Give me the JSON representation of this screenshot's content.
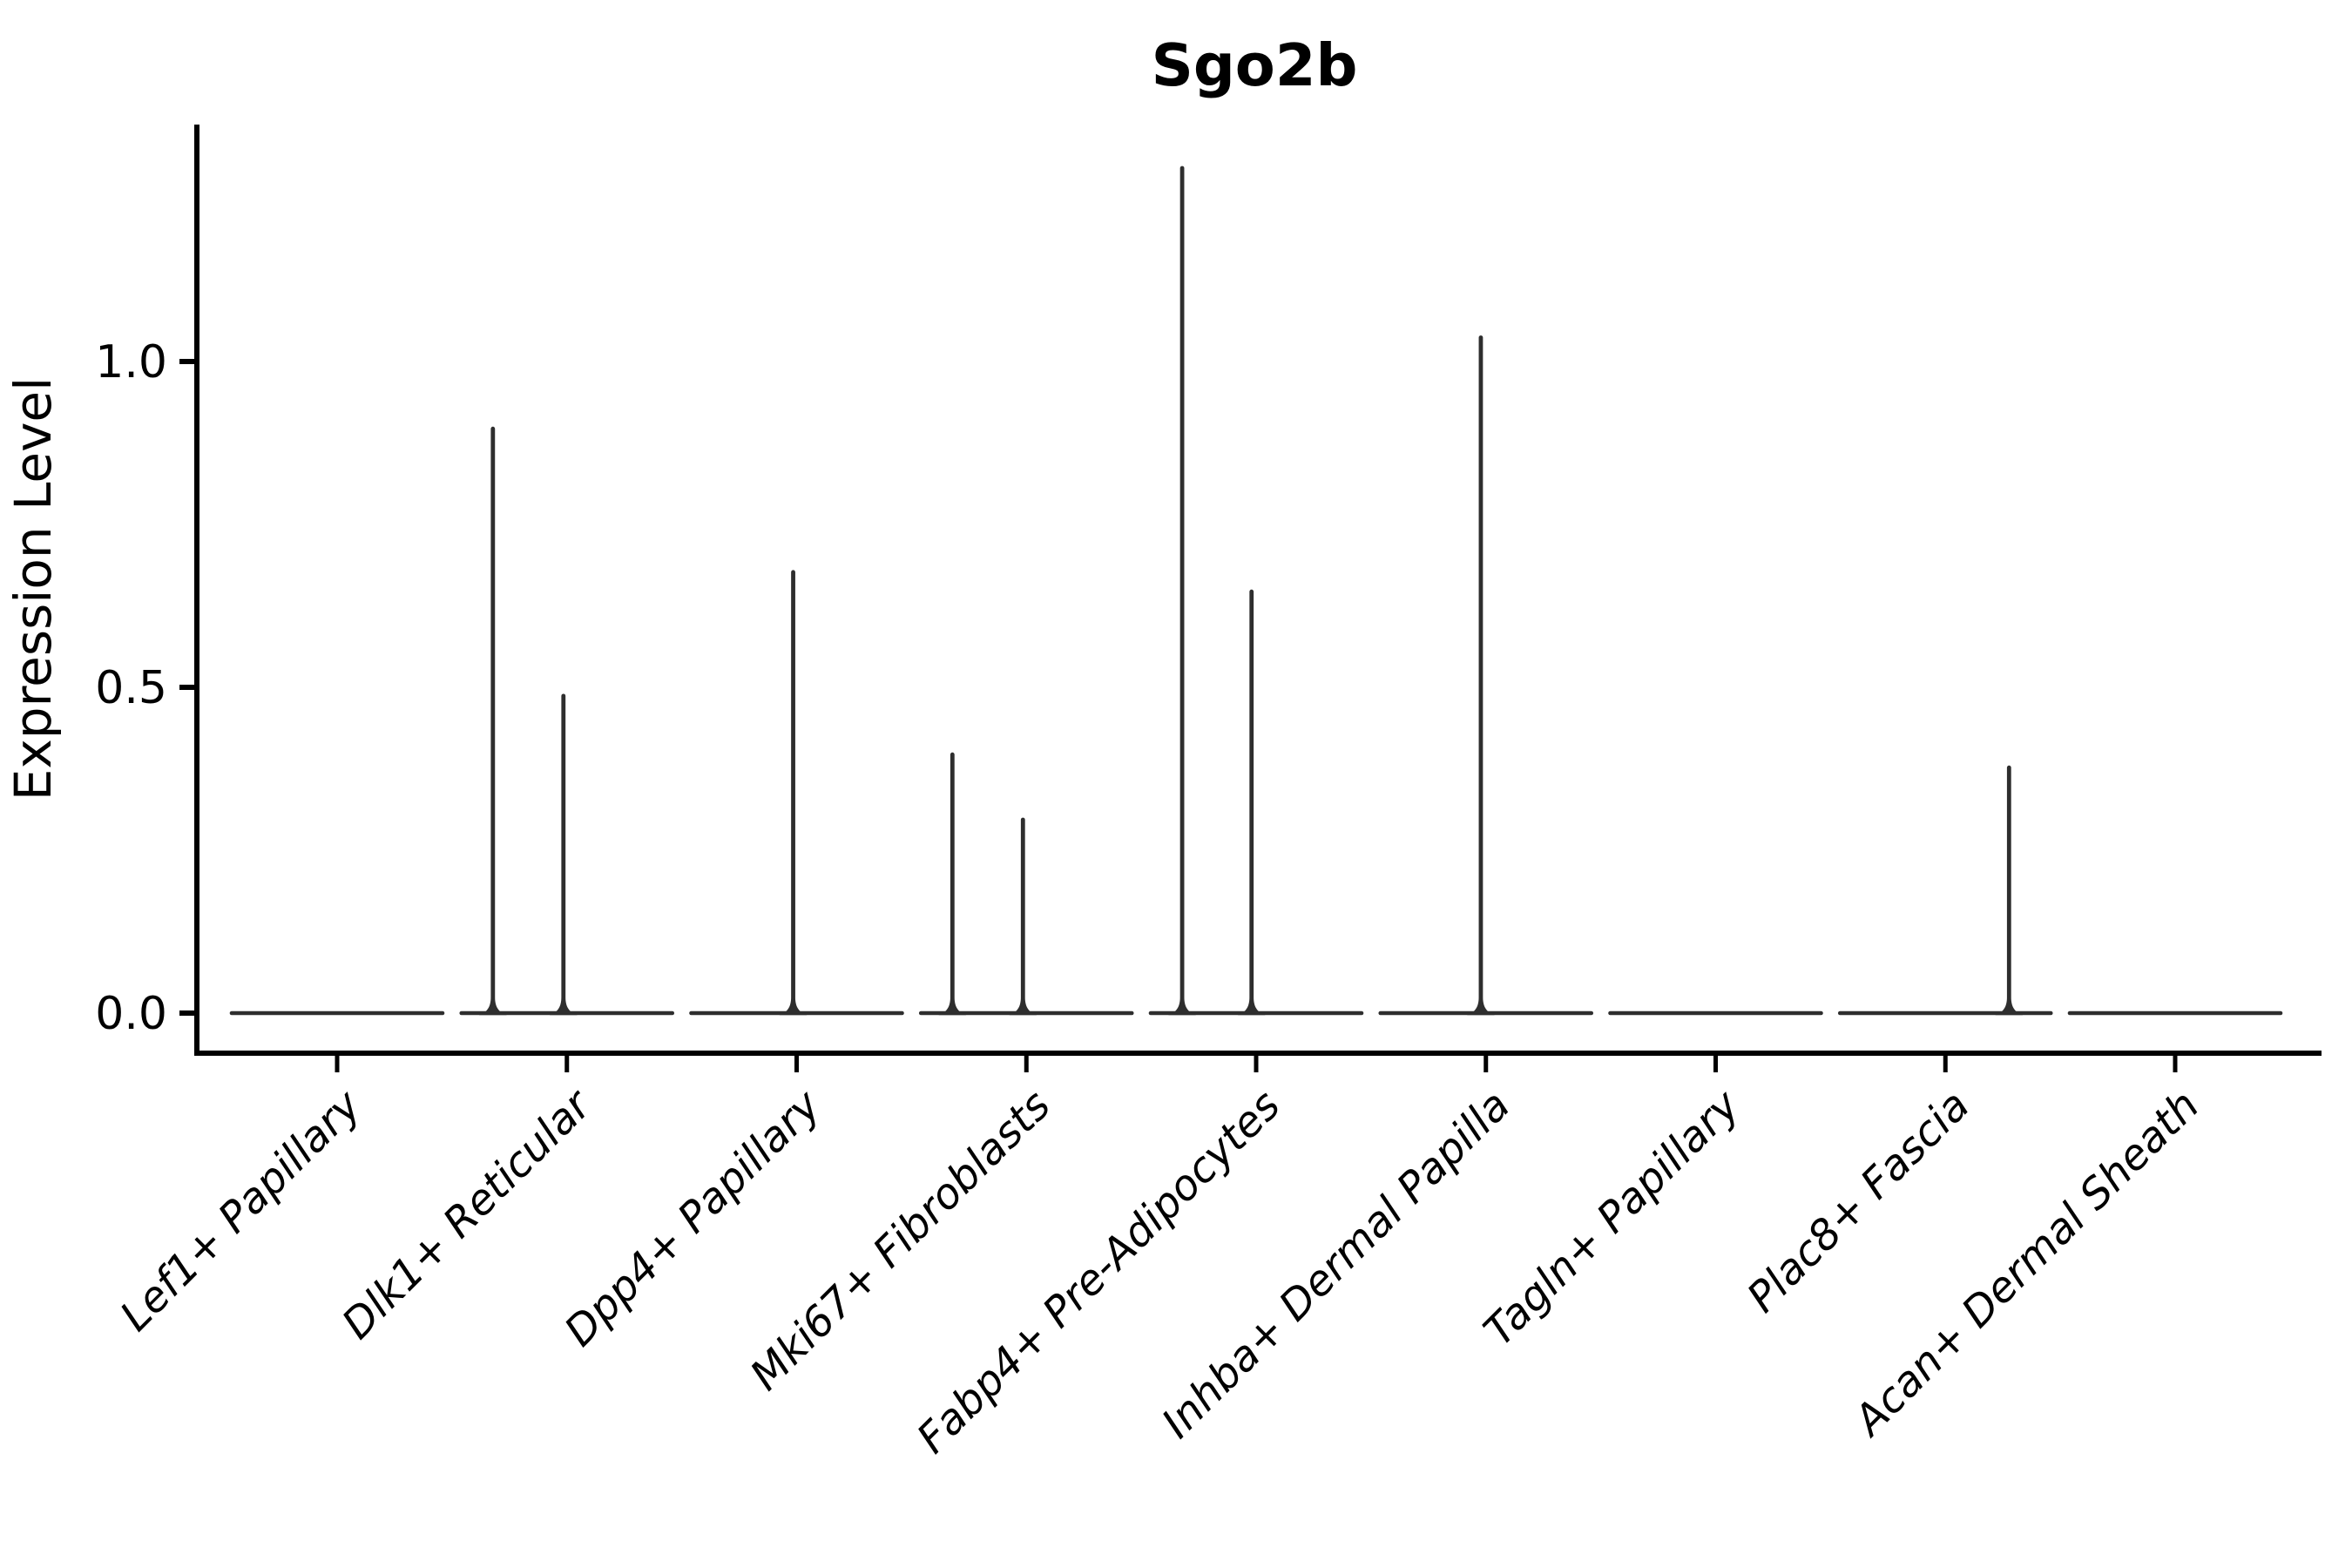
{
  "figure": {
    "title": "Sgo2b",
    "background_color": "#ffffff",
    "text_color": "#000000"
  },
  "axes": {
    "ylabel": "Expression Level",
    "spine_color": "#000000",
    "violin_line_color": "#2e2e2e"
  },
  "chart_data": {
    "type": "violin",
    "title": "Sgo2b",
    "xlabel": "",
    "ylabel": "Expression Level",
    "ylim": [
      -0.06,
      1.36
    ],
    "grid": "off",
    "legend": "none",
    "ytick_values": [
      0.0,
      0.5,
      1.0
    ],
    "ytick_labels": [
      "0.0",
      "0.5",
      "1.0"
    ],
    "categories": [
      "Lef1+ Papillary",
      "Dlk1+ Reticular",
      "Dpp4+ Papillary",
      "Mki67+ Fibroblasts",
      "Fabp4+ Pre-Adipocytes",
      "Inhba+ Dermal Papilla",
      "Tagln+ Papillary",
      "Plac8+ Fascia",
      "Acan+ Dermal Sheath"
    ],
    "violins": [
      {
        "category": "Lef1+ Papillary",
        "baseline_value": 0.0,
        "spikes": []
      },
      {
        "category": "Dlk1+ Reticular",
        "baseline_value": 0.0,
        "spikes": [
          {
            "offset": -0.322,
            "peak": 0.9
          },
          {
            "offset": -0.015,
            "peak": 0.49
          }
        ]
      },
      {
        "category": "Dpp4+ Papillary",
        "baseline_value": 0.0,
        "spikes": [
          {
            "offset": -0.015,
            "peak": 0.68
          }
        ]
      },
      {
        "category": "Mki67+ Fibroblasts",
        "baseline_value": 0.0,
        "spikes": [
          {
            "offset": -0.322,
            "peak": 0.4
          },
          {
            "offset": -0.015,
            "peak": 0.3
          }
        ]
      },
      {
        "category": "Fabp4+ Pre-Adipocytes",
        "baseline_value": 0.0,
        "spikes": [
          {
            "offset": -0.322,
            "peak": 1.3
          },
          {
            "offset": -0.02,
            "peak": 0.65
          }
        ]
      },
      {
        "category": "Inhba+ Dermal Papilla",
        "baseline_value": 0.0,
        "spikes": [
          {
            "offset": -0.022,
            "peak": 1.04
          }
        ]
      },
      {
        "category": "Tagln+ Papillary",
        "baseline_value": 0.0,
        "spikes": []
      },
      {
        "category": "Plac8+ Fascia",
        "baseline_value": 0.0,
        "spikes": [
          {
            "offset": 0.277,
            "peak": 0.38
          }
        ]
      },
      {
        "category": "Acan+ Dermal Sheath",
        "baseline_value": 0.0,
        "spikes": []
      }
    ]
  }
}
